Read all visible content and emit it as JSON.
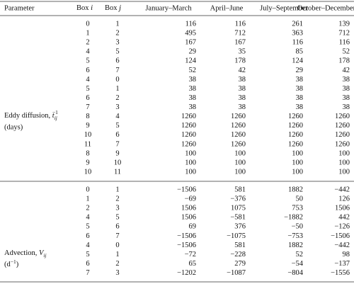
{
  "table": {
    "header": {
      "parameter": "Parameter",
      "box_i": [
        "Box",
        "i"
      ],
      "box_j": [
        "Box",
        "j"
      ],
      "periods": [
        "January–March",
        "April–June",
        "July–September",
        "October–December"
      ]
    },
    "sections": [
      {
        "label": {
          "prefix": "Eddy diffusion,",
          "symbol": "t",
          "subscript": "ij",
          "superscript": "−1",
          "unit": "(days)"
        },
        "rows": [
          [
            "0",
            "1",
            "116",
            "116",
            "261",
            "139"
          ],
          [
            "1",
            "2",
            "495",
            "712",
            "363",
            "712"
          ],
          [
            "2",
            "3",
            "167",
            "167",
            "116",
            "116"
          ],
          [
            "4",
            "5",
            "29",
            "35",
            "85",
            "52"
          ],
          [
            "5",
            "6",
            "124",
            "178",
            "124",
            "178"
          ],
          [
            "6",
            "7",
            "52",
            "42",
            "29",
            "42"
          ],
          [
            "4",
            "0",
            "38",
            "38",
            "38",
            "38"
          ],
          [
            "5",
            "1",
            "38",
            "38",
            "38",
            "38"
          ],
          [
            "6",
            "2",
            "38",
            "38",
            "38",
            "38"
          ],
          [
            "7",
            "3",
            "38",
            "38",
            "38",
            "38"
          ],
          [
            "8",
            "4",
            "1260",
            "1260",
            "1260",
            "1260"
          ],
          [
            "9",
            "5",
            "1260",
            "1260",
            "1260",
            "1260"
          ],
          [
            "10",
            "6",
            "1260",
            "1260",
            "1260",
            "1260"
          ],
          [
            "11",
            "7",
            "1260",
            "1260",
            "1260",
            "1260"
          ],
          [
            "8",
            "9",
            "100",
            "100",
            "100",
            "100"
          ],
          [
            "9",
            "10",
            "100",
            "100",
            "100",
            "100"
          ],
          [
            "10",
            "11",
            "100",
            "100",
            "100",
            "100"
          ]
        ]
      },
      {
        "label": {
          "prefix": "Advection,",
          "symbol": "V",
          "subscript": "ij",
          "unit_open": "(d",
          "unit_superscript": "−1",
          "unit_close": ")"
        },
        "rows": [
          [
            "0",
            "1",
            "−1506",
            "581",
            "1882",
            "−442"
          ],
          [
            "1",
            "2",
            "−69",
            "−376",
            "50",
            "126"
          ],
          [
            "2",
            "3",
            "1506",
            "1075",
            "753",
            "1506"
          ],
          [
            "4",
            "5",
            "1506",
            "−581",
            "−1882",
            "442"
          ],
          [
            "5",
            "6",
            "69",
            "376",
            "−50",
            "−126"
          ],
          [
            "6",
            "7",
            "−1506",
            "−1075",
            "−753",
            "−1506"
          ],
          [
            "4",
            "0",
            "−1506",
            "581",
            "1882",
            "−442"
          ],
          [
            "5",
            "1",
            "−72",
            "−228",
            "52",
            "98"
          ],
          [
            "6",
            "2",
            "65",
            "279",
            "−54",
            "−137"
          ],
          [
            "7",
            "3",
            "−1202",
            "−1087",
            "−804",
            "−1556"
          ]
        ]
      }
    ]
  }
}
